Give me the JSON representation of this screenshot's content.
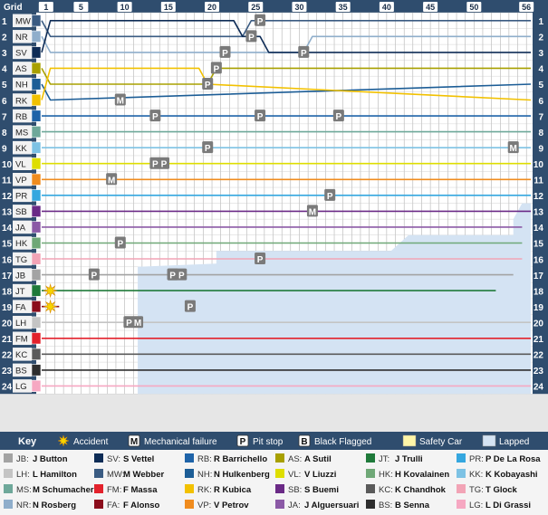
{
  "chart_data": {
    "type": "line",
    "title": "",
    "grid_label": "Grid",
    "x_ticks": [
      1,
      5,
      10,
      15,
      20,
      25,
      30,
      35,
      40,
      45,
      50,
      56
    ],
    "total_laps": 56,
    "positions": 24,
    "grid_order": [
      {
        "pos": 1,
        "code": "MW",
        "color": "#3a5b82"
      },
      {
        "pos": 2,
        "code": "NR",
        "color": "#8faecb"
      },
      {
        "pos": 3,
        "code": "SV",
        "color": "#0e2c56"
      },
      {
        "pos": 4,
        "code": "AS",
        "color": "#a8a000"
      },
      {
        "pos": 5,
        "code": "NH",
        "color": "#1c5d96"
      },
      {
        "pos": 6,
        "code": "RK",
        "color": "#f2c100"
      },
      {
        "pos": 7,
        "code": "RB",
        "color": "#1e63a8"
      },
      {
        "pos": 8,
        "code": "MS",
        "color": "#6ea89a"
      },
      {
        "pos": 9,
        "code": "KK",
        "color": "#7dc2e4"
      },
      {
        "pos": 10,
        "code": "VL",
        "color": "#dede00"
      },
      {
        "pos": 11,
        "code": "VP",
        "color": "#f08c1e"
      },
      {
        "pos": 12,
        "code": "PR",
        "color": "#35a7df"
      },
      {
        "pos": 13,
        "code": "SB",
        "color": "#6a2a86"
      },
      {
        "pos": 14,
        "code": "JA",
        "color": "#8b5aa6"
      },
      {
        "pos": 15,
        "code": "HK",
        "color": "#6fa877"
      },
      {
        "pos": 16,
        "code": "TG",
        "color": "#f2a4b6"
      },
      {
        "pos": 17,
        "code": "JB",
        "color": "#a3a3a3"
      },
      {
        "pos": 18,
        "code": "JT",
        "color": "#1f7a3a"
      },
      {
        "pos": 19,
        "code": "FA",
        "color": "#8b0d1c"
      },
      {
        "pos": 20,
        "code": "LH",
        "color": "#c4c4c4"
      },
      {
        "pos": 21,
        "code": "FM",
        "color": "#e3222c"
      },
      {
        "pos": 22,
        "code": "KC",
        "color": "#5a5a5a"
      },
      {
        "pos": 23,
        "code": "BS",
        "color": "#2e2e2e"
      },
      {
        "pos": 24,
        "code": "LG",
        "color": "#f6a8c2"
      }
    ],
    "series": [
      {
        "name": "M Webber",
        "code": "MW",
        "color": "#3a5b82",
        "lastLap": 56,
        "points": [
          [
            0,
            1
          ],
          [
            1,
            2
          ],
          [
            2,
            2
          ],
          [
            3,
            2
          ],
          [
            23,
            2
          ],
          [
            24,
            1
          ],
          [
            56,
            1
          ]
        ]
      },
      {
        "name": "N Rosberg",
        "code": "NR",
        "color": "#8faecb",
        "lastLap": 56,
        "points": [
          [
            0,
            2
          ],
          [
            1,
            3
          ],
          [
            2,
            3
          ],
          [
            30,
            3
          ],
          [
            31,
            2
          ],
          [
            56,
            2
          ]
        ]
      },
      {
        "name": "S Vettel",
        "code": "SV",
        "color": "#0e2c56",
        "lastLap": 56,
        "points": [
          [
            0,
            3
          ],
          [
            1,
            1
          ],
          [
            22,
            1
          ],
          [
            23,
            2
          ],
          [
            25,
            2
          ],
          [
            26,
            3
          ],
          [
            56,
            3
          ]
        ]
      },
      {
        "name": "A Sutil",
        "code": "AS",
        "color": "#a8a000",
        "lastLap": 56,
        "points": [
          [
            0,
            4
          ],
          [
            1,
            5
          ],
          [
            19,
            5
          ],
          [
            20,
            4
          ],
          [
            56,
            4
          ]
        ]
      },
      {
        "name": "N Hulkenberg",
        "code": "NH",
        "color": "#1c5d96",
        "lastLap": 56,
        "points": [
          [
            0,
            5
          ],
          [
            1,
            6
          ],
          [
            56,
            5
          ]
        ]
      },
      {
        "name": "R Kubica",
        "code": "RK",
        "color": "#f2c100",
        "lastLap": 56,
        "points": [
          [
            0,
            6
          ],
          [
            1,
            4
          ],
          [
            18,
            4
          ],
          [
            19,
            5
          ],
          [
            56,
            6
          ]
        ]
      },
      {
        "name": "R Barrichello",
        "code": "RB",
        "color": "#1e63a8",
        "lastLap": 56,
        "points": [
          [
            0,
            7
          ],
          [
            1,
            7
          ],
          [
            56,
            7
          ]
        ]
      },
      {
        "name": "M Schumacher",
        "code": "MS",
        "color": "#6ea89a",
        "lastLap": 56,
        "points": [
          [
            0,
            8
          ],
          [
            1,
            8
          ],
          [
            56,
            8
          ]
        ]
      },
      {
        "name": "K Kobayashi",
        "code": "KK",
        "color": "#7dc2e4",
        "lastLap": 56,
        "points": [
          [
            0,
            9
          ],
          [
            1,
            9
          ],
          [
            56,
            9
          ]
        ]
      },
      {
        "name": "V Liuzzi",
        "code": "VL",
        "color": "#dede00",
        "lastLap": 56,
        "points": [
          [
            0,
            10
          ],
          [
            1,
            10
          ],
          [
            56,
            10
          ]
        ]
      },
      {
        "name": "V Petrov",
        "code": "VP",
        "color": "#f08c1e",
        "lastLap": 56,
        "points": [
          [
            0,
            11
          ],
          [
            1,
            11
          ],
          [
            56,
            11
          ]
        ]
      },
      {
        "name": "P De La Rosa",
        "code": "PR",
        "color": "#35a7df",
        "lastLap": 56,
        "points": [
          [
            0,
            12
          ],
          [
            1,
            12
          ],
          [
            56,
            12
          ]
        ]
      },
      {
        "name": "S Buemi",
        "code": "SB",
        "color": "#6a2a86",
        "lastLap": 56,
        "points": [
          [
            0,
            13
          ],
          [
            1,
            13
          ],
          [
            56,
            13
          ]
        ]
      },
      {
        "name": "J Alguersuari",
        "code": "JA",
        "color": "#8b5aa6",
        "lastLap": 55,
        "points": [
          [
            0,
            14
          ],
          [
            1,
            14
          ],
          [
            55,
            14
          ]
        ]
      },
      {
        "name": "H Kovalainen",
        "code": "HK",
        "color": "#6fa877",
        "lastLap": 55,
        "points": [
          [
            0,
            15
          ],
          [
            1,
            15
          ],
          [
            55,
            15
          ]
        ]
      },
      {
        "name": "T Glock",
        "code": "TG",
        "color": "#f2a4b6",
        "lastLap": 55,
        "points": [
          [
            0,
            16
          ],
          [
            1,
            16
          ],
          [
            55,
            16
          ]
        ]
      },
      {
        "name": "J Button",
        "code": "JB",
        "color": "#a3a3a3",
        "lastLap": 54,
        "points": [
          [
            0,
            17
          ],
          [
            1,
            17
          ],
          [
            54,
            17
          ]
        ]
      },
      {
        "name": "J Trulli",
        "code": "JT",
        "color": "#1f7a3a",
        "lastLap": 52,
        "points": [
          [
            0,
            18
          ],
          [
            1,
            18
          ],
          [
            52,
            18
          ]
        ]
      },
      {
        "name": "F Alonso",
        "code": "FA",
        "color": "#8b0d1c",
        "lastLap": 2,
        "points": [
          [
            0,
            19
          ],
          [
            1,
            19
          ],
          [
            2,
            19
          ]
        ]
      },
      {
        "name": "L Hamilton",
        "code": "LH",
        "color": "#c4c4c4",
        "lastLap": 56,
        "points": [
          [
            0,
            20
          ],
          [
            1,
            20
          ],
          [
            56,
            20
          ]
        ]
      },
      {
        "name": "F Massa",
        "code": "FM",
        "color": "#e3222c",
        "lastLap": 56,
        "points": [
          [
            0,
            21
          ],
          [
            1,
            21
          ],
          [
            56,
            21
          ]
        ]
      },
      {
        "name": "K Chandhok",
        "code": "KC",
        "color": "#5a5a5a",
        "lastLap": 56,
        "points": [
          [
            0,
            22
          ],
          [
            1,
            22
          ],
          [
            56,
            22
          ]
        ]
      },
      {
        "name": "B Senna",
        "code": "BS",
        "color": "#2e2e2e",
        "lastLap": 56,
        "points": [
          [
            0,
            23
          ],
          [
            1,
            23
          ],
          [
            56,
            23
          ]
        ]
      },
      {
        "name": "L Di Grassi",
        "code": "LG",
        "color": "#f6a8c2",
        "lastLap": 56,
        "points": [
          [
            0,
            24
          ],
          [
            1,
            24
          ],
          [
            56,
            24
          ]
        ]
      }
    ],
    "events": [
      {
        "type": "pit",
        "label": "P",
        "lap": 24,
        "pos": 2
      },
      {
        "type": "pit",
        "label": "P",
        "lap": 25,
        "pos": 1
      },
      {
        "type": "pit",
        "label": "P",
        "lap": 21,
        "pos": 3
      },
      {
        "type": "pit",
        "label": "P",
        "lap": 30,
        "pos": 3
      },
      {
        "type": "pit",
        "label": "P",
        "lap": 20,
        "pos": 4
      },
      {
        "type": "pit",
        "label": "P",
        "lap": 19,
        "pos": 5
      },
      {
        "type": "mechanical",
        "label": "M",
        "lap": 9,
        "pos": 6
      },
      {
        "type": "pit",
        "label": "P",
        "lap": 13,
        "pos": 7
      },
      {
        "type": "pit",
        "label": "P",
        "lap": 25,
        "pos": 7
      },
      {
        "type": "pit",
        "label": "P",
        "lap": 34,
        "pos": 7
      },
      {
        "type": "pit",
        "label": "P",
        "lap": 19,
        "pos": 9
      },
      {
        "type": "mechanical",
        "label": "M",
        "lap": 54,
        "pos": 9
      },
      {
        "type": "pit",
        "label": "P",
        "lap": 13,
        "pos": 10
      },
      {
        "type": "pit",
        "label": "P",
        "lap": 14,
        "pos": 10
      },
      {
        "type": "mechanical",
        "label": "M",
        "lap": 8,
        "pos": 11
      },
      {
        "type": "pit",
        "label": "P",
        "lap": 33,
        "pos": 12
      },
      {
        "type": "mechanical",
        "label": "M",
        "lap": 31,
        "pos": 13
      },
      {
        "type": "pit",
        "label": "P",
        "lap": 9,
        "pos": 15
      },
      {
        "type": "pit",
        "label": "P",
        "lap": 25,
        "pos": 16
      },
      {
        "type": "pit",
        "label": "P",
        "lap": 15,
        "pos": 17
      },
      {
        "type": "pit",
        "label": "P",
        "lap": 6,
        "pos": 17
      },
      {
        "type": "pit",
        "label": "P",
        "lap": 15,
        "pos": 17
      },
      {
        "type": "pit",
        "label": "P",
        "lap": 16,
        "pos": 17
      },
      {
        "type": "pit",
        "label": "P",
        "lap": 17,
        "pos": 19
      },
      {
        "type": "pit",
        "label": "P",
        "lap": 10,
        "pos": 20
      },
      {
        "type": "mechanical",
        "label": "M",
        "lap": 11,
        "pos": 20
      },
      {
        "type": "accident",
        "label": "",
        "lap": 1,
        "pos": 18
      },
      {
        "type": "accident",
        "label": "",
        "lap": 1,
        "pos": 19
      }
    ],
    "lapped_region_start_lap": 11,
    "key": {
      "title": "Key",
      "symbols": [
        {
          "symbol": "accident",
          "label": "Accident"
        },
        {
          "symbol": "M",
          "label": "Mechanical failure"
        },
        {
          "symbol": "P",
          "label": "Pit stop"
        },
        {
          "symbol": "B",
          "label": "Black Flagged"
        },
        {
          "symbol": "safety",
          "label": "Safety Car"
        },
        {
          "symbol": "lapped",
          "label": "Lapped"
        }
      ],
      "drivers": [
        [
          "JB",
          "J Button"
        ],
        [
          "SV",
          "S Vettel"
        ],
        [
          "RB",
          "R Barrichello"
        ],
        [
          "AS",
          "A Sutil"
        ],
        [
          "JT",
          "J Trulli"
        ],
        [
          "PR",
          "P De La Rosa"
        ],
        [
          "LH",
          "L Hamilton"
        ],
        [
          "MW",
          "M Webber"
        ],
        [
          "NH",
          "N Hulkenberg"
        ],
        [
          "VL",
          "V Liuzzi"
        ],
        [
          "HK",
          "H Kovalainen"
        ],
        [
          "KK",
          "K Kobayashi"
        ],
        [
          "MS",
          "M Schumacher"
        ],
        [
          "FM",
          "F Massa"
        ],
        [
          "RK",
          "R Kubica"
        ],
        [
          "SB",
          "S Buemi"
        ],
        [
          "KC",
          "K Chandhok"
        ],
        [
          "TG",
          "T Glock"
        ],
        [
          "NR",
          "N Rosberg"
        ],
        [
          "FA",
          "F Alonso"
        ],
        [
          "VP",
          "V Petrov"
        ],
        [
          "JA",
          "J Alguersuari"
        ],
        [
          "BS",
          "B Senna"
        ],
        [
          "LG",
          "L Di Grassi"
        ]
      ]
    },
    "legend_placement": "bottom"
  }
}
